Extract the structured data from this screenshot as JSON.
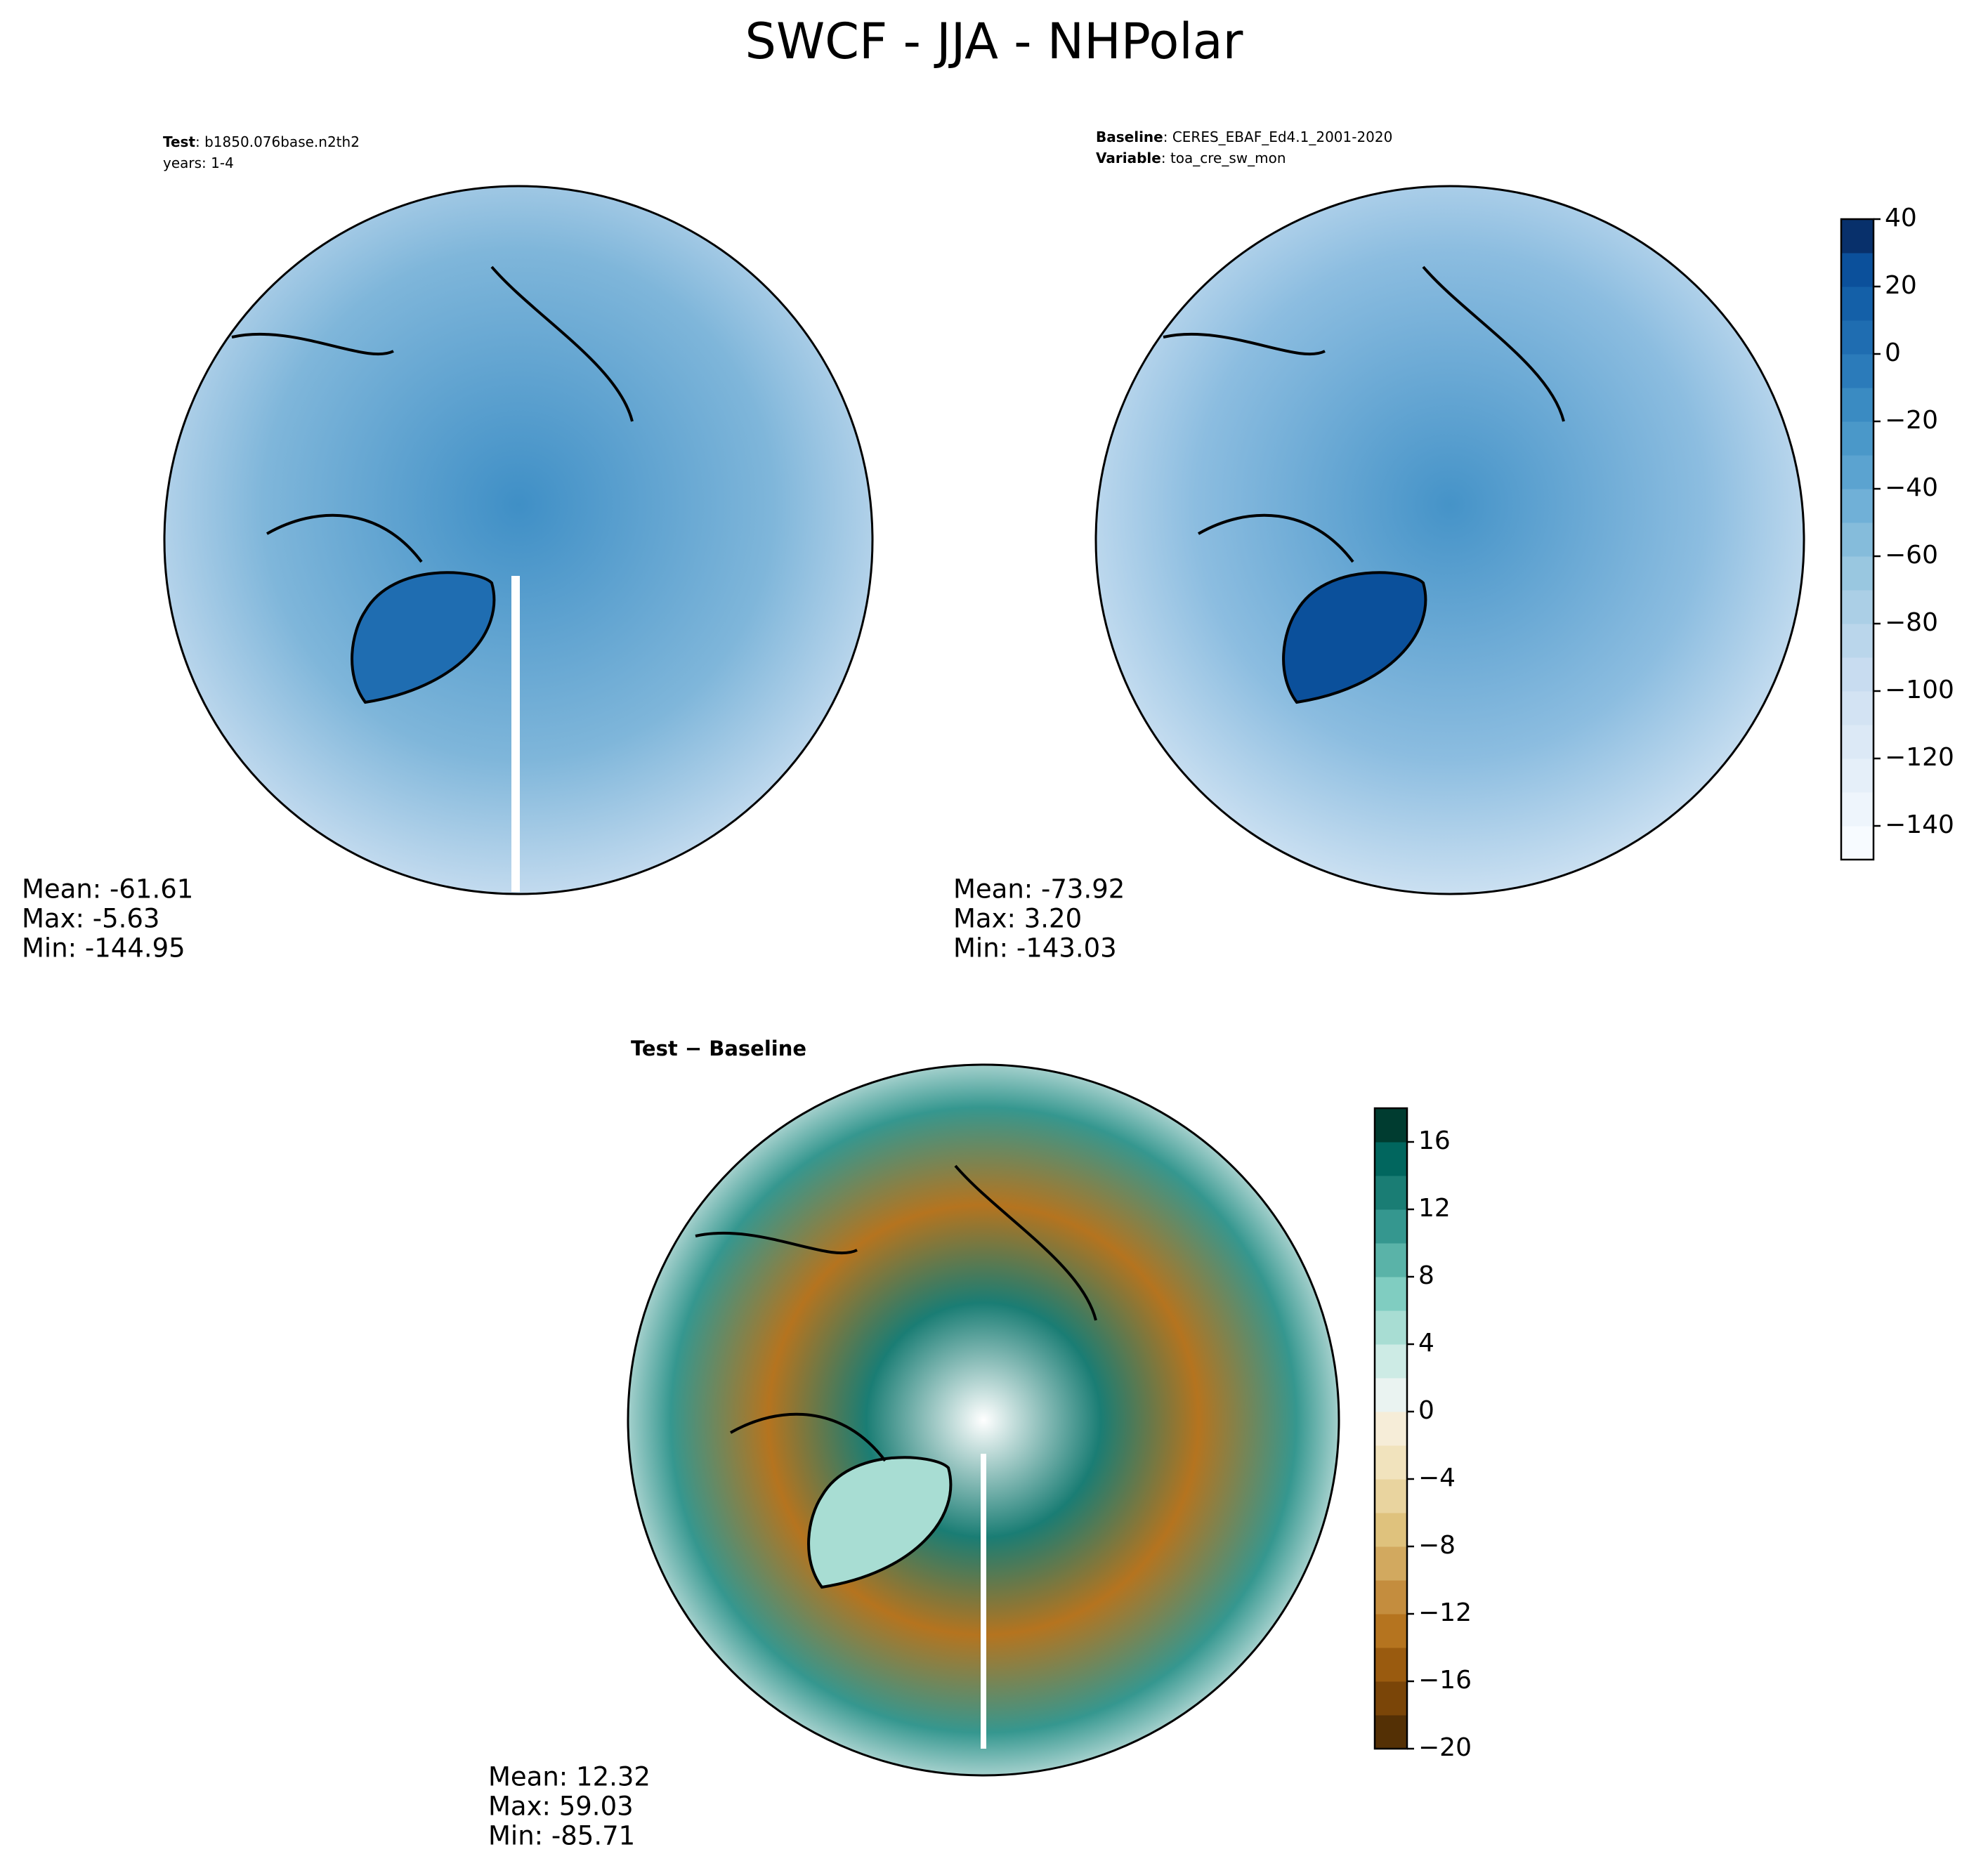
{
  "title": "SWCF - JJA - NHPolar",
  "panels": [
    {
      "header": [
        {
          "label": "Test",
          "text": ": b1850.076base.n2th2"
        },
        {
          "text": "years: 1-4"
        }
      ],
      "stats": [
        "Mean: -61.61",
        "Max: -5.63",
        "Min: -144.95"
      ]
    },
    {
      "header": [
        {
          "label": "Baseline",
          "text": ": CERES_EBAF_Ed4.1_2001-2020"
        },
        {
          "label": "Variable",
          "text": ": toa_cre_sw_mon"
        }
      ],
      "stats": [
        "Mean: -73.92",
        "Max:  3.20",
        "Min: -143.03"
      ]
    },
    {
      "header": [
        {
          "label": "Test − Baseline"
        }
      ],
      "stats": [
        "Mean: 12.32",
        "Max: 59.03",
        "Min: -85.71"
      ]
    }
  ],
  "colorbars": [
    {
      "lim": [
        -150,
        40
      ],
      "ticks": [
        {
          "value": -140,
          "label": "−140"
        },
        {
          "value": -120,
          "label": "−120"
        },
        {
          "value": -100,
          "label": "−100"
        },
        {
          "value": -80,
          "label": "−80"
        },
        {
          "value": -60,
          "label": "−60"
        },
        {
          "value": -40,
          "label": "−40"
        },
        {
          "value": -20,
          "label": "−20"
        },
        0,
        20,
        40
      ],
      "colors": [
        "#f7fbff",
        "#eef5fc",
        "#e5eff9",
        "#dce9f6",
        "#d3e3f3",
        "#c8dcf0",
        "#bad6eb",
        "#abcfe6",
        "#99c7e0",
        "#85bcdb",
        "#70b0d7",
        "#5ba3d0",
        "#4a98c9",
        "#3a8bc2",
        "#2b7bba",
        "#1f6db1",
        "#1460a8",
        "#0b509b",
        "#08306b"
      ]
    },
    {
      "lim": [
        -20,
        18
      ],
      "ticks": [
        {
          "value": -20,
          "label": "−20"
        },
        {
          "value": -16,
          "label": "−16"
        },
        {
          "value": -12,
          "label": "−12"
        },
        {
          "value": -8,
          "label": "−8"
        },
        {
          "value": -4,
          "label": "−4"
        },
        0,
        4,
        8,
        12,
        16
      ],
      "colors": [
        "#543005",
        "#7a4508",
        "#9a5b0f",
        "#b5741f",
        "#c48d3e",
        "#d2a95f",
        "#dfc27d",
        "#e9d49f",
        "#f1e3bd",
        "#f6edd8",
        "#eaf3f1",
        "#cdebe5",
        "#a8ddd3",
        "#80cdc1",
        "#5ab3a8",
        "#35978f",
        "#1a7d74",
        "#01665e",
        "#003c30"
      ]
    }
  ]
}
